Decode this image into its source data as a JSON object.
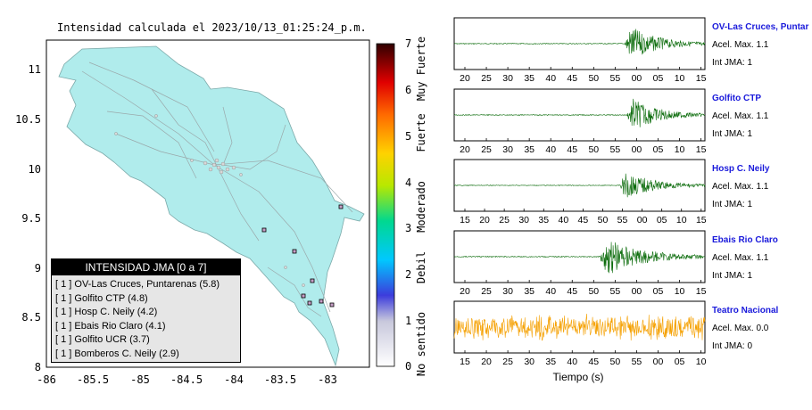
{
  "title": "Intensidad calculada el 2023/10/13_01:25:24_p.m.",
  "map": {
    "y_ticks": [
      "11",
      "10.5",
      "10",
      "9.5",
      "9",
      "8.5",
      "8"
    ],
    "x_ticks": [
      "-86",
      "-85.5",
      "-85",
      "-84.5",
      "-84",
      "-83.5",
      "-83"
    ],
    "land_color": "#b0ecec",
    "water_color": "#ffffff"
  },
  "colorbar": {
    "values": [
      "0",
      "1",
      "2",
      "3",
      "4",
      "5",
      "6",
      "7"
    ],
    "labels": [
      "No sentido",
      "Debil",
      "Moderado",
      "Fuerte",
      "Muy Fuerte"
    ]
  },
  "legend": {
    "title": "INTENSIDAD JMA [0 a 7]",
    "items": [
      "[ 1 ]  OV-Las Cruces, Puntarenas (5.8)",
      "[ 1 ]  Golfito CTP (4.8)",
      "[ 1 ]  Hosp C. Neily (4.2)",
      "[ 1 ]  Ebais Rio Claro (4.1)",
      "[ 1 ]  Golfito UCR (3.7)",
      "[ 1 ]  Bomberos C. Neily (2.9)"
    ]
  },
  "seismograms": [
    {
      "name": "OV-Las Cruces, Puntar",
      "accel": "Acel. Max. 1.1",
      "jma": "Int JMA: 1",
      "color": "#0a6b0a",
      "ticks": [
        "20",
        "25",
        "30",
        "35",
        "40",
        "45",
        "50",
        "55",
        "00",
        "05",
        "10",
        "15"
      ],
      "event": 0.68,
      "amp": 0.9
    },
    {
      "name": "Golfito CTP",
      "accel": "Acel. Max. 1.1",
      "jma": "Int JMA: 1",
      "color": "#0a6b0a",
      "ticks": [
        "20",
        "25",
        "30",
        "35",
        "40",
        "45",
        "50",
        "55",
        "00",
        "05",
        "10",
        "15"
      ],
      "event": 0.69,
      "amp": 0.85
    },
    {
      "name": "Hosp C. Neily",
      "accel": "Acel. Max. 1.1",
      "jma": "Int JMA: 1",
      "color": "#0a6b0a",
      "ticks": [
        "15",
        "20",
        "25",
        "30",
        "35",
        "40",
        "45",
        "50",
        "55",
        "00",
        "05",
        "10",
        "15"
      ],
      "event": 0.66,
      "amp": 0.7
    },
    {
      "name": "Ebais Rio Claro",
      "accel": "Acel. Max. 1.1",
      "jma": "Int JMA: 1",
      "color": "#0a6b0a",
      "ticks": [
        "20",
        "25",
        "30",
        "35",
        "40",
        "45",
        "50",
        "55",
        "00",
        "05",
        "10",
        "15"
      ],
      "event": 0.58,
      "amp": 0.95
    },
    {
      "name": "Teatro Nacional",
      "accel": "Acel. Max. 0.0",
      "jma": "Int JMA: 0",
      "color": "#f5a000",
      "ticks": [
        "15",
        "20",
        "25",
        "30",
        "35",
        "40",
        "45",
        "50",
        "55",
        "00",
        "05",
        "10"
      ],
      "event": 0.0,
      "amp": 0.75
    }
  ],
  "xlabel": "Tiempo (s)"
}
